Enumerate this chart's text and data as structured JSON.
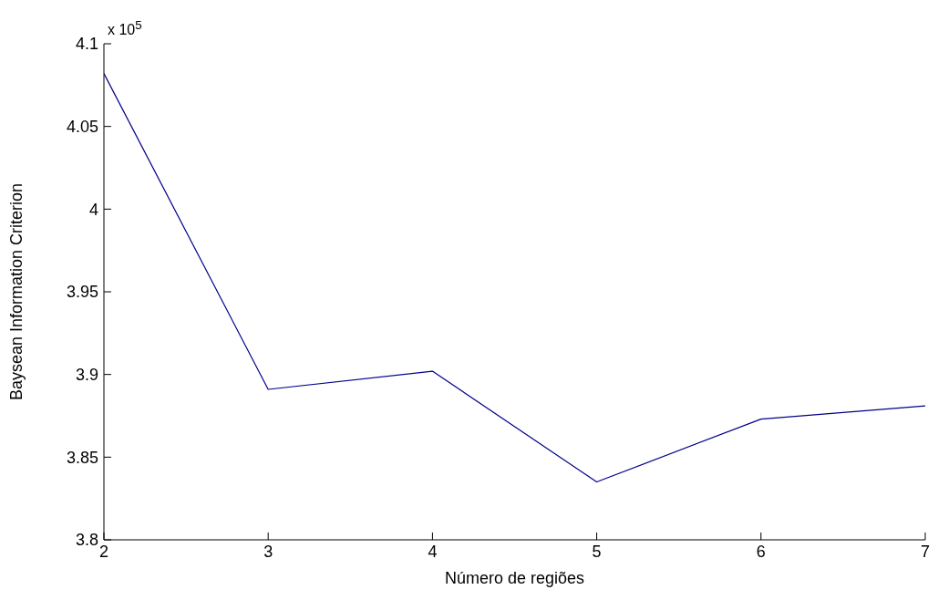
{
  "chart_data": {
    "type": "line",
    "xlabel": "Número de regiões",
    "ylabel": "Baysean Information Criterion",
    "annotations": [
      "x 10$^{5}$"
    ],
    "x": [
      2,
      3,
      4,
      5,
      6,
      7
    ],
    "series": [
      {
        "color": "#00008b",
        "values": [
          4.082,
          3.891,
          3.902,
          3.835,
          3.873,
          3.881
        ]
      }
    ],
    "xlim": [
      2,
      7
    ],
    "xticks": [
      2,
      3,
      4,
      5,
      6,
      7
    ],
    "ylim": [
      3.8,
      4.1
    ],
    "yticks": [
      3.8,
      3.85,
      3.9,
      3.95,
      4,
      4.05,
      4.1
    ],
    "grid": false,
    "legend": false,
    "marker": "none",
    "line_style": "solid"
  }
}
